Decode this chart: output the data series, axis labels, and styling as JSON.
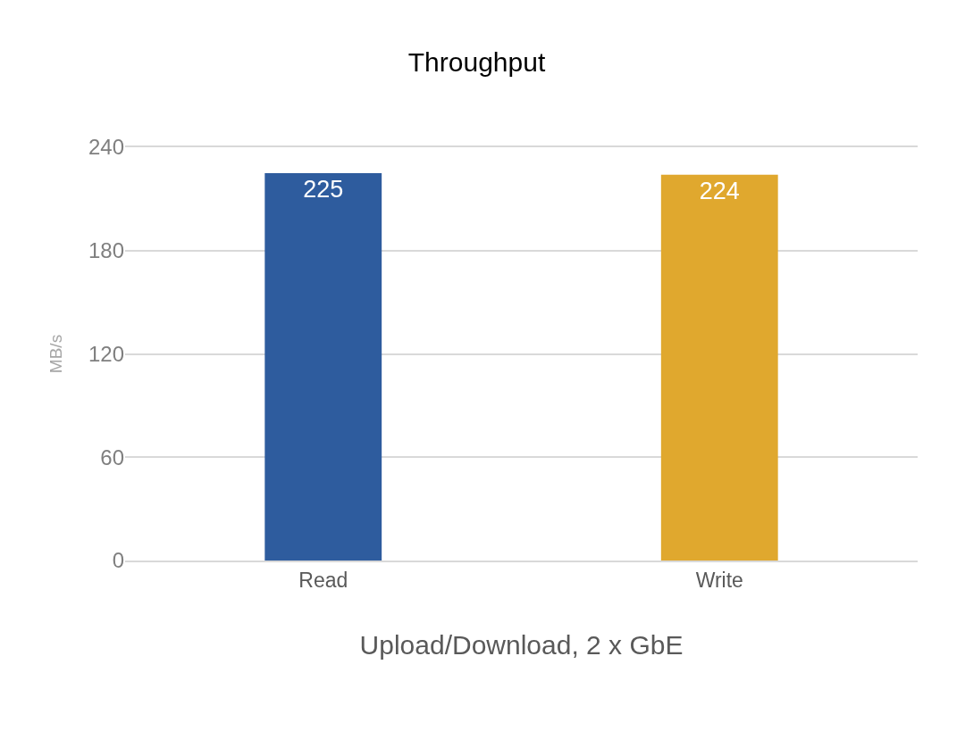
{
  "chart_data": {
    "type": "bar",
    "title": "Throughput",
    "xlabel": "Upload/Download, 2 x GbE",
    "ylabel": "MB/s",
    "categories": [
      "Read",
      "Write"
    ],
    "values": [
      225,
      224
    ],
    "colors": [
      "#2e5c9e",
      "#e0a82e"
    ],
    "ylim": [
      0,
      240
    ],
    "yticks": [
      0,
      60,
      120,
      180,
      240
    ],
    "grid": "y",
    "data_labels": true
  }
}
